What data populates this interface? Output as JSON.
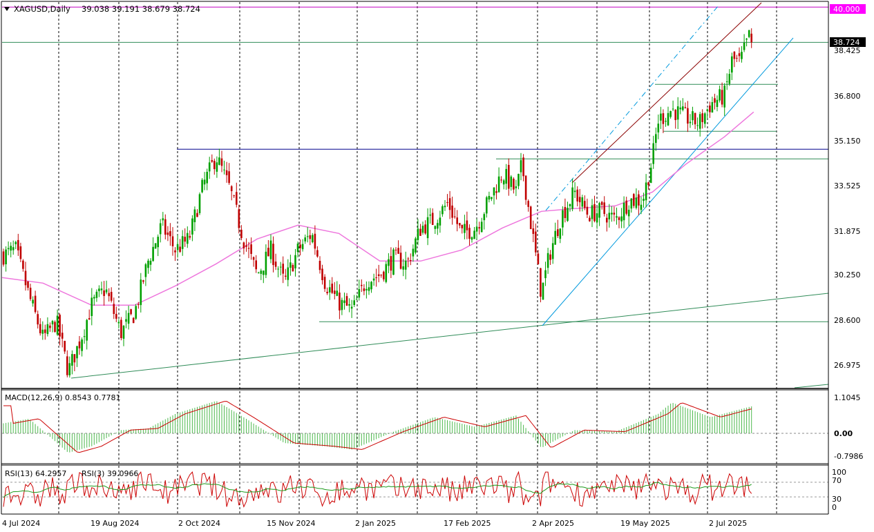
{
  "window": {
    "symbol_label": "XAGUSD,Daily",
    "ohlc_text": "39.038 39.191 38.679 38.724",
    "menu_icon": "triangle-down-icon"
  },
  "price_axis": {
    "ticks": [
      "38.425",
      "36.800",
      "35.150",
      "33.525",
      "31.875",
      "30.250",
      "28.600",
      "26.975"
    ],
    "current_price": "38.724",
    "level_label": "40.000"
  },
  "macd": {
    "label": "MACD(12,26,9) 0.8543 0.7781",
    "ticks": [
      "1.1045",
      "0.00",
      "-0.7986"
    ]
  },
  "rsi": {
    "label": "RSI(13) 64.2957",
    "label2": "RSI(3) 39.0966",
    "ticks": [
      "100",
      "70",
      "30",
      "0"
    ]
  },
  "time_axis": {
    "labels": [
      "4 Jul 2024",
      "19 Aug 2024",
      "2 Oct 2024",
      "15 Nov 2024",
      "2 Jan 2025",
      "17 Feb 2025",
      "2 Apr 2025",
      "19 May 2025",
      "2 Jul 2025"
    ]
  },
  "colors": {
    "bull": "#00a000",
    "bear": "#c00000",
    "ma": "#ee77dd",
    "macd_hist": "#4cb84c",
    "macd_signal": "#cc0000",
    "rsi13": "#1a9a1a",
    "rsi3": "#cc0000",
    "channel": "#0099dd",
    "trendline": "#8b0000",
    "level40": "#c000c0"
  },
  "chart_data": {
    "type": "candlestick",
    "symbol": "XAGUSD",
    "timeframe": "Daily",
    "ohlc_last": {
      "open": 39.038,
      "high": 39.191,
      "low": 38.679,
      "close": 38.724
    },
    "ylim": [
      26.2,
      40.4
    ],
    "y_ticks": [
      38.425,
      36.8,
      35.15,
      33.525,
      31.875,
      30.25,
      28.6,
      26.975
    ],
    "x_labels": [
      "4 Jul 2024",
      "19 Aug 2024",
      "2 Oct 2024",
      "15 Nov 2024",
      "2 Jan 2025",
      "17 Feb 2025",
      "2 Apr 2025",
      "19 May 2025",
      "2 Jul 2025"
    ],
    "close_path": [
      {
        "date": "2024-07-04",
        "close": 31.0
      },
      {
        "date": "2024-07-11",
        "close": 31.2
      },
      {
        "date": "2024-07-18",
        "close": 29.5
      },
      {
        "date": "2024-07-25",
        "close": 28.0
      },
      {
        "date": "2024-08-01",
        "close": 28.6
      },
      {
        "date": "2024-08-07",
        "close": 26.8
      },
      {
        "date": "2024-08-13",
        "close": 27.9
      },
      {
        "date": "2024-08-19",
        "close": 29.2
      },
      {
        "date": "2024-08-26",
        "close": 29.8
      },
      {
        "date": "2024-09-03",
        "close": 28.2
      },
      {
        "date": "2024-09-10",
        "close": 28.9
      },
      {
        "date": "2024-09-17",
        "close": 30.8
      },
      {
        "date": "2024-09-24",
        "close": 32.1
      },
      {
        "date": "2024-10-01",
        "close": 31.2
      },
      {
        "date": "2024-10-08",
        "close": 31.6
      },
      {
        "date": "2024-10-15",
        "close": 33.5
      },
      {
        "date": "2024-10-22",
        "close": 34.6
      },
      {
        "date": "2024-10-29",
        "close": 33.4
      },
      {
        "date": "2024-11-05",
        "close": 31.6
      },
      {
        "date": "2024-11-12",
        "close": 30.3
      },
      {
        "date": "2024-11-19",
        "close": 31.2
      },
      {
        "date": "2024-11-26",
        "close": 30.0
      },
      {
        "date": "2024-12-03",
        "close": 31.2
      },
      {
        "date": "2024-12-10",
        "close": 31.8
      },
      {
        "date": "2024-12-17",
        "close": 30.0
      },
      {
        "date": "2024-12-24",
        "close": 29.3
      },
      {
        "date": "2024-12-31",
        "close": 29.0
      },
      {
        "date": "2025-01-07",
        "close": 30.1
      },
      {
        "date": "2025-01-14",
        "close": 30.3
      },
      {
        "date": "2025-01-21",
        "close": 30.9
      },
      {
        "date": "2025-01-28",
        "close": 30.7
      },
      {
        "date": "2025-02-04",
        "close": 32.0
      },
      {
        "date": "2025-02-11",
        "close": 32.3
      },
      {
        "date": "2025-02-18",
        "close": 32.9
      },
      {
        "date": "2025-02-25",
        "close": 31.8
      },
      {
        "date": "2025-03-04",
        "close": 32.0
      },
      {
        "date": "2025-03-11",
        "close": 33.0
      },
      {
        "date": "2025-03-18",
        "close": 34.0
      },
      {
        "date": "2025-03-25",
        "close": 33.3
      },
      {
        "date": "2025-03-28",
        "close": 34.3
      },
      {
        "date": "2025-04-03",
        "close": 31.5
      },
      {
        "date": "2025-04-07",
        "close": 29.6
      },
      {
        "date": "2025-04-11",
        "close": 31.0
      },
      {
        "date": "2025-04-17",
        "close": 32.4
      },
      {
        "date": "2025-04-24",
        "close": 33.3
      },
      {
        "date": "2025-05-01",
        "close": 32.5
      },
      {
        "date": "2025-05-08",
        "close": 32.6
      },
      {
        "date": "2025-05-15",
        "close": 32.3
      },
      {
        "date": "2025-05-22",
        "close": 33.0
      },
      {
        "date": "2025-05-29",
        "close": 33.0
      },
      {
        "date": "2025-06-03",
        "close": 34.5
      },
      {
        "date": "2025-06-06",
        "close": 35.9
      },
      {
        "date": "2025-06-13",
        "close": 36.3
      },
      {
        "date": "2025-06-20",
        "close": 36.0
      },
      {
        "date": "2025-06-27",
        "close": 35.8
      },
      {
        "date": "2025-07-03",
        "close": 36.5
      },
      {
        "date": "2025-07-10",
        "close": 36.8
      },
      {
        "date": "2025-07-14",
        "close": 38.1
      },
      {
        "date": "2025-07-18",
        "close": 38.0
      },
      {
        "date": "2025-07-23",
        "close": 39.0
      },
      {
        "date": "2025-07-25",
        "close": 38.724
      }
    ],
    "ma_path": [
      {
        "date": "2024-07-04",
        "value": 30.2
      },
      {
        "date": "2024-07-25",
        "value": 30.0
      },
      {
        "date": "2024-08-19",
        "value": 29.2
      },
      {
        "date": "2024-09-10",
        "value": 29.2
      },
      {
        "date": "2024-10-01",
        "value": 29.9
      },
      {
        "date": "2024-10-22",
        "value": 30.7
      },
      {
        "date": "2024-11-12",
        "value": 31.6
      },
      {
        "date": "2024-12-03",
        "value": 32.1
      },
      {
        "date": "2024-12-24",
        "value": 31.8
      },
      {
        "date": "2025-01-14",
        "value": 30.8
      },
      {
        "date": "2025-02-04",
        "value": 30.8
      },
      {
        "date": "2025-02-25",
        "value": 31.2
      },
      {
        "date": "2025-03-18",
        "value": 32.0
      },
      {
        "date": "2025-04-07",
        "value": 32.6
      },
      {
        "date": "2025-04-24",
        "value": 32.7
      },
      {
        "date": "2025-05-15",
        "value": 32.8
      },
      {
        "date": "2025-06-03",
        "value": 33.3
      },
      {
        "date": "2025-06-20",
        "value": 34.3
      },
      {
        "date": "2025-07-10",
        "value": 35.3
      },
      {
        "date": "2025-07-25",
        "value": 36.2
      }
    ],
    "horizontal_levels": [
      40.0,
      38.724,
      37.2,
      35.5,
      34.85,
      34.5,
      28.6
    ],
    "macd_values": {
      "main": 0.8543,
      "signal": 0.7781,
      "ylim": [
        -0.9,
        1.2
      ]
    },
    "macd_path": [
      {
        "date": "2024-07-04",
        "value": 0.3
      },
      {
        "date": "2024-07-18",
        "value": 0.45
      },
      {
        "date": "2024-08-07",
        "value": -0.6
      },
      {
        "date": "2024-08-19",
        "value": -0.4
      },
      {
        "date": "2024-09-03",
        "value": 0.1
      },
      {
        "date": "2024-09-17",
        "value": 0.15
      },
      {
        "date": "2024-10-01",
        "value": 0.6
      },
      {
        "date": "2024-10-22",
        "value": 1.0
      },
      {
        "date": "2024-11-05",
        "value": 0.5
      },
      {
        "date": "2024-11-26",
        "value": -0.3
      },
      {
        "date": "2024-12-17",
        "value": -0.4
      },
      {
        "date": "2024-12-31",
        "value": -0.5
      },
      {
        "date": "2025-01-21",
        "value": 0.05
      },
      {
        "date": "2025-02-11",
        "value": 0.5
      },
      {
        "date": "2025-03-04",
        "value": 0.2
      },
      {
        "date": "2025-03-25",
        "value": 0.55
      },
      {
        "date": "2025-04-07",
        "value": -0.45
      },
      {
        "date": "2025-04-24",
        "value": 0.1
      },
      {
        "date": "2025-05-15",
        "value": 0.05
      },
      {
        "date": "2025-06-06",
        "value": 0.6
      },
      {
        "date": "2025-06-13",
        "value": 0.95
      },
      {
        "date": "2025-07-03",
        "value": 0.5
      },
      {
        "date": "2025-07-25",
        "value": 0.85
      }
    ],
    "rsi_values": {
      "rsi13": 64.2957,
      "rsi3": 39.0966,
      "levels": [
        70,
        30
      ],
      "ylim": [
        0,
        100
      ]
    }
  }
}
